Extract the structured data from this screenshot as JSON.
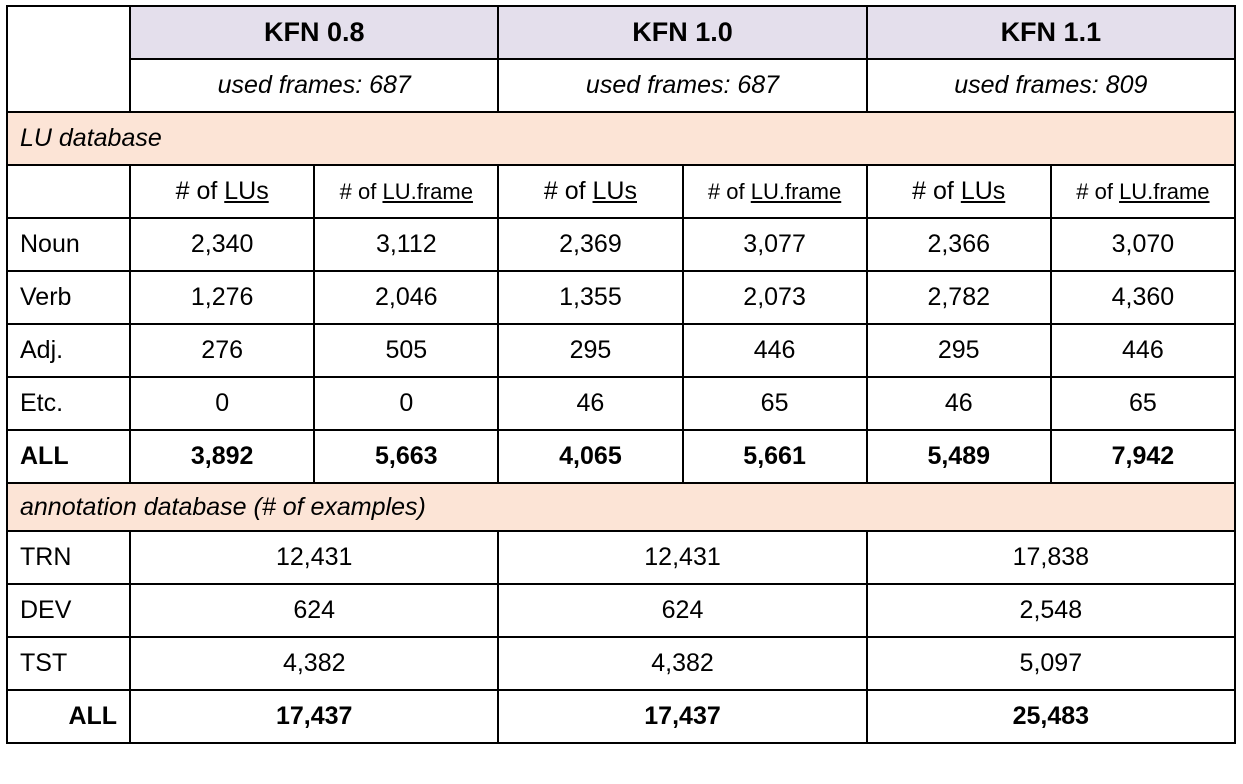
{
  "versions": [
    {
      "name": "KFN 0.8",
      "used_frames": "used frames: 687"
    },
    {
      "name": "KFN 1.0",
      "used_frames": "used frames: 687"
    },
    {
      "name": "KFN 1.1",
      "used_frames": "used frames: 809"
    }
  ],
  "lu_section": {
    "title": "LU database",
    "col_prefix": "# of",
    "col_lus": "LUs",
    "col_luframe": "LU.frame",
    "rows": [
      {
        "label": "Noun",
        "values": [
          "2,340",
          "3,112",
          "2,369",
          "3,077",
          "2,366",
          "3,070"
        ]
      },
      {
        "label": "Verb",
        "values": [
          "1,276",
          "2,046",
          "1,355",
          "2,073",
          "2,782",
          "4,360"
        ]
      },
      {
        "label": "Adj.",
        "values": [
          "276",
          "505",
          "295",
          "446",
          "295",
          "446"
        ]
      },
      {
        "label": "Etc.",
        "values": [
          "0",
          "0",
          "46",
          "65",
          "46",
          "65"
        ]
      }
    ],
    "total": {
      "label": "ALL",
      "values": [
        "3,892",
        "5,663",
        "4,065",
        "5,661",
        "5,489",
        "7,942"
      ]
    }
  },
  "annotation_section": {
    "title": "annotation database (# of examples)",
    "rows": [
      {
        "label": "TRN",
        "values": [
          "12,431",
          "12,431",
          "17,838"
        ]
      },
      {
        "label": "DEV",
        "values": [
          "624",
          "624",
          "2,548"
        ]
      },
      {
        "label": "TST",
        "values": [
          "4,382",
          "4,382",
          "5,097"
        ]
      }
    ],
    "total": {
      "label": "ALL",
      "values": [
        "17,437",
        "17,437",
        "25,483"
      ]
    }
  }
}
